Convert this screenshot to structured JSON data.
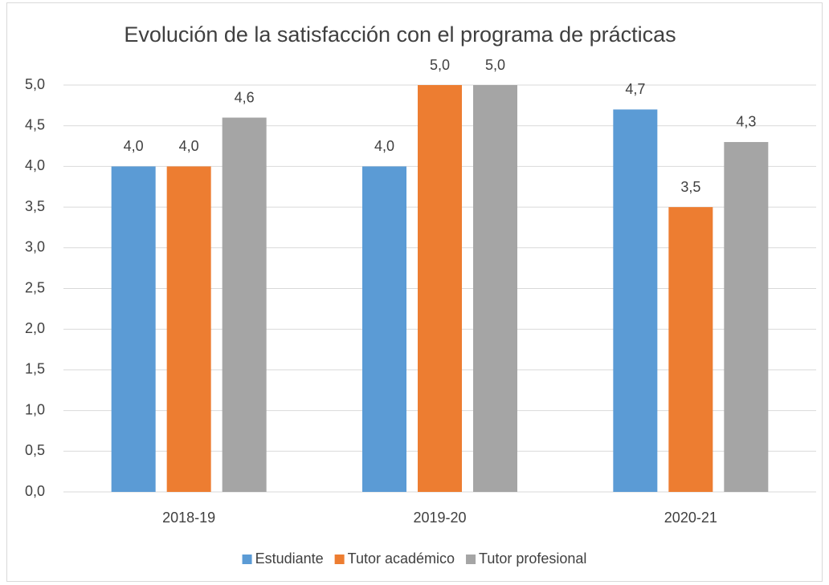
{
  "chart_data": {
    "type": "bar",
    "title": "Evolución de la satisfacción con el programa de prácticas",
    "categories": [
      "2018-19",
      "2019-20",
      "2020-21"
    ],
    "series": [
      {
        "name": "Estudiante",
        "color": "#5b9bd5",
        "values": [
          4.0,
          4.0,
          4.7
        ],
        "value_labels": [
          "4,0",
          "4,0",
          "4,7"
        ]
      },
      {
        "name": "Tutor académico",
        "color": "#ed7d31",
        "values": [
          4.0,
          5.0,
          3.5
        ],
        "value_labels": [
          "4,0",
          "5,0",
          "3,5"
        ]
      },
      {
        "name": "Tutor profesional",
        "color": "#a5a5a5",
        "values": [
          4.6,
          5.0,
          4.3
        ],
        "value_labels": [
          "4,6",
          "5,0",
          "4,3"
        ]
      }
    ],
    "ylim": [
      0,
      5
    ],
    "yticks": [
      {
        "value": 0,
        "label": "0,0"
      },
      {
        "value": 0.5,
        "label": "0,5"
      },
      {
        "value": 1,
        "label": "1,0"
      },
      {
        "value": 1.5,
        "label": "1,5"
      },
      {
        "value": 2,
        "label": "2,0"
      },
      {
        "value": 2.5,
        "label": "2,5"
      },
      {
        "value": 3,
        "label": "3,0"
      },
      {
        "value": 3.5,
        "label": "3,5"
      },
      {
        "value": 4,
        "label": "4,0"
      },
      {
        "value": 4.5,
        "label": "4,5"
      },
      {
        "value": 5,
        "label": "5,0"
      }
    ],
    "grid": true,
    "legend": "bottom"
  }
}
